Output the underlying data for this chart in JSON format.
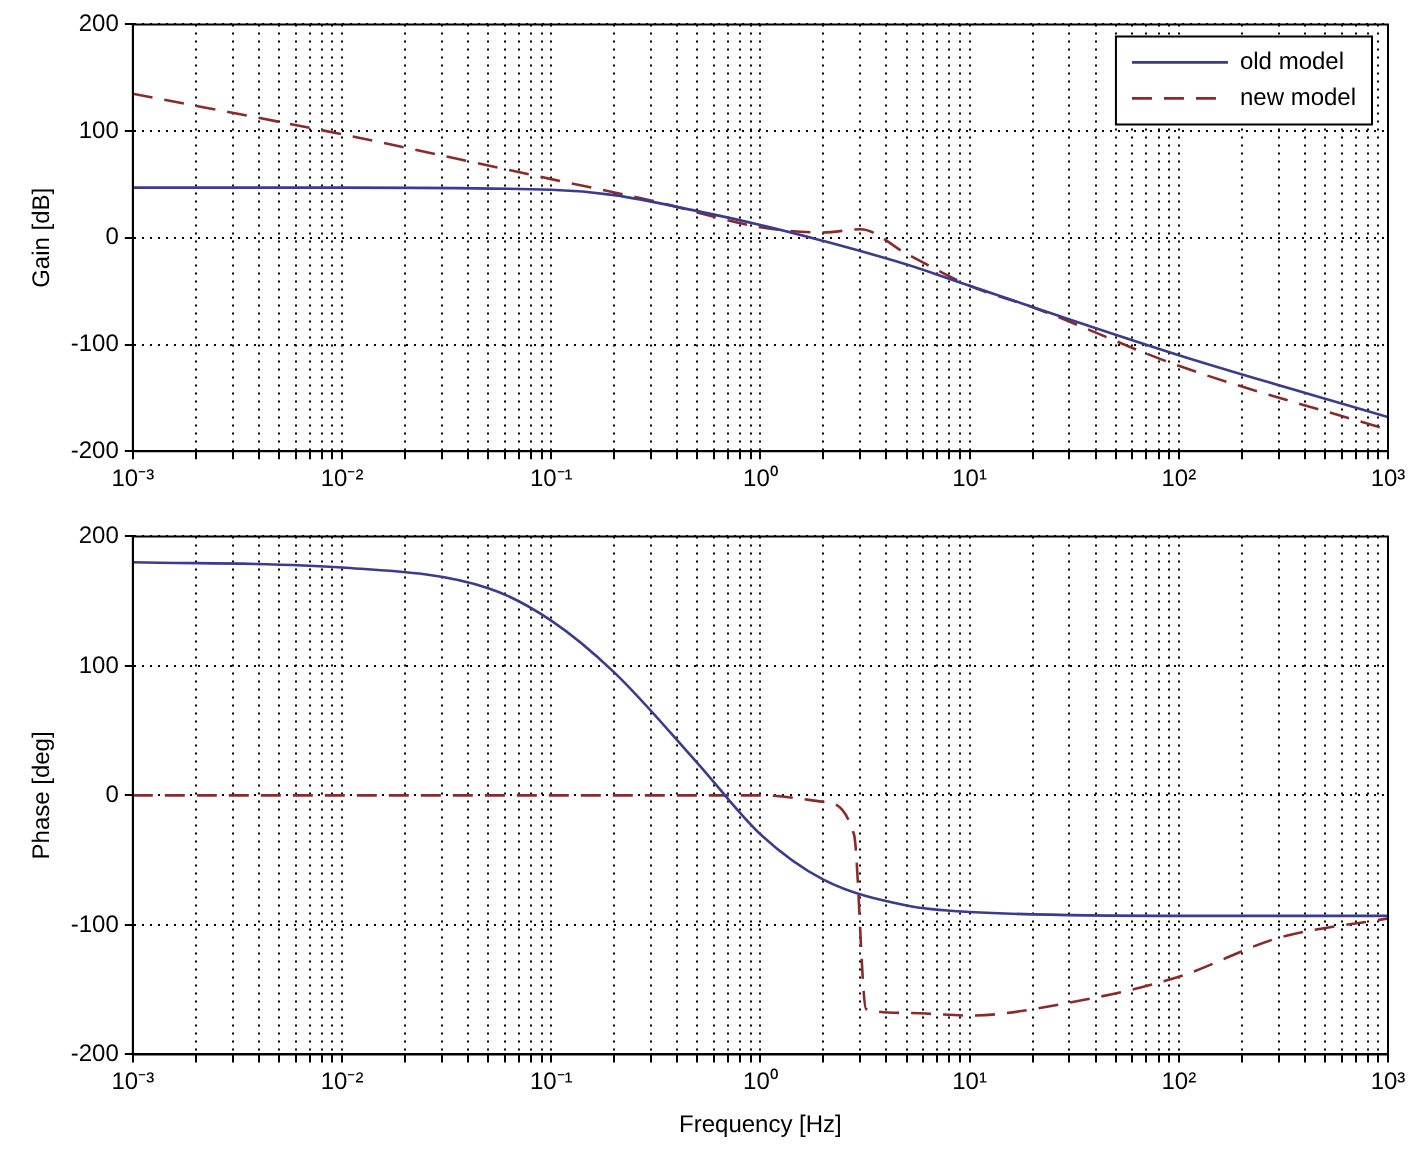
{
  "chart_data": [
    {
      "type": "line",
      "ylabel": "Gain [dB]",
      "log": "x",
      "xlim": [
        0.001,
        1000
      ],
      "ylim": [
        -200,
        200
      ],
      "yticks": [
        -200,
        -100,
        0,
        100,
        200
      ],
      "xticks": [
        {
          "value": 0.001,
          "label": "10⁻³"
        },
        {
          "value": 0.002,
          "label": null
        },
        {
          "value": 0.003,
          "label": null
        },
        {
          "value": 0.004,
          "label": null
        },
        {
          "value": 0.005,
          "label": null
        },
        {
          "value": 0.006,
          "label": null
        },
        {
          "value": 0.007,
          "label": null
        },
        {
          "value": 0.008,
          "label": null
        },
        {
          "value": 0.009,
          "label": null
        },
        {
          "value": 0.01,
          "label": "10⁻²"
        },
        {
          "value": 0.02,
          "label": null
        },
        {
          "value": 0.03,
          "label": null
        },
        {
          "value": 0.04,
          "label": null
        },
        {
          "value": 0.05,
          "label": null
        },
        {
          "value": 0.06,
          "label": null
        },
        {
          "value": 0.07,
          "label": null
        },
        {
          "value": 0.08,
          "label": null
        },
        {
          "value": 0.09,
          "label": null
        },
        {
          "value": 0.1,
          "label": "10⁻¹"
        },
        {
          "value": 0.2,
          "label": null
        },
        {
          "value": 0.3,
          "label": null
        },
        {
          "value": 0.4,
          "label": null
        },
        {
          "value": 0.5,
          "label": null
        },
        {
          "value": 0.6,
          "label": null
        },
        {
          "value": 0.7,
          "label": null
        },
        {
          "value": 0.8,
          "label": null
        },
        {
          "value": 0.9,
          "label": null
        },
        {
          "value": 1,
          "label": "10⁰"
        },
        {
          "value": 2,
          "label": null
        },
        {
          "value": 3,
          "label": null
        },
        {
          "value": 4,
          "label": null
        },
        {
          "value": 5,
          "label": null
        },
        {
          "value": 6,
          "label": null
        },
        {
          "value": 7,
          "label": null
        },
        {
          "value": 8,
          "label": null
        },
        {
          "value": 9,
          "label": null
        },
        {
          "value": 10,
          "label": "10¹"
        },
        {
          "value": 20,
          "label": null
        },
        {
          "value": 30,
          "label": null
        },
        {
          "value": 40,
          "label": null
        },
        {
          "value": 50,
          "label": null
        },
        {
          "value": 60,
          "label": null
        },
        {
          "value": 70,
          "label": null
        },
        {
          "value": 80,
          "label": null
        },
        {
          "value": 90,
          "label": null
        },
        {
          "value": 100,
          "label": "10²"
        },
        {
          "value": 200,
          "label": null
        },
        {
          "value": 300,
          "label": null
        },
        {
          "value": 400,
          "label": null
        },
        {
          "value": 500,
          "label": null
        },
        {
          "value": 600,
          "label": null
        },
        {
          "value": 700,
          "label": null
        },
        {
          "value": 800,
          "label": null
        },
        {
          "value": 900,
          "label": null
        },
        {
          "value": 1000,
          "label": "10³"
        }
      ],
      "grid": true,
      "legend": "top right",
      "marker": "none",
      "series": [
        {
          "name": "old model",
          "color": "#3b3b8f",
          "line_style": "solid",
          "x": [
            0.001,
            0.01,
            0.1,
            0.2,
            0.5,
            1,
            2,
            5,
            10,
            100,
            1000
          ],
          "values": [
            47,
            47,
            45,
            40,
            25,
            12,
            -3,
            -25,
            -45,
            -110,
            -168
          ]
        },
        {
          "name": "new model",
          "color": "#8b2a2a",
          "line_style": "dashed",
          "x": [
            0.001,
            0.01,
            0.1,
            0.3,
            1,
            2,
            3,
            5,
            10,
            20,
            100,
            1000
          ],
          "values": [
            135,
            97,
            55,
            35,
            10,
            5,
            8,
            -15,
            -45,
            -65,
            -120,
            -180
          ]
        }
      ]
    },
    {
      "type": "line",
      "xlabel": "Frequency [Hz]",
      "ylabel": "Phase [deg]",
      "log": "x",
      "xlim": [
        0.001,
        1000
      ],
      "ylim": [
        -200,
        200
      ],
      "yticks": [
        -200,
        -100,
        0,
        100,
        200
      ],
      "xticks": [
        {
          "value": 0.001,
          "label": "10⁻³"
        },
        {
          "value": 0.002,
          "label": null
        },
        {
          "value": 0.003,
          "label": null
        },
        {
          "value": 0.004,
          "label": null
        },
        {
          "value": 0.005,
          "label": null
        },
        {
          "value": 0.006,
          "label": null
        },
        {
          "value": 0.007,
          "label": null
        },
        {
          "value": 0.008,
          "label": null
        },
        {
          "value": 0.009,
          "label": null
        },
        {
          "value": 0.01,
          "label": "10⁻²"
        },
        {
          "value": 0.02,
          "label": null
        },
        {
          "value": 0.03,
          "label": null
        },
        {
          "value": 0.04,
          "label": null
        },
        {
          "value": 0.05,
          "label": null
        },
        {
          "value": 0.06,
          "label": null
        },
        {
          "value": 0.07,
          "label": null
        },
        {
          "value": 0.08,
          "label": null
        },
        {
          "value": 0.09,
          "label": null
        },
        {
          "value": 0.1,
          "label": "10⁻¹"
        },
        {
          "value": 0.2,
          "label": null
        },
        {
          "value": 0.3,
          "label": null
        },
        {
          "value": 0.4,
          "label": null
        },
        {
          "value": 0.5,
          "label": null
        },
        {
          "value": 0.6,
          "label": null
        },
        {
          "value": 0.7,
          "label": null
        },
        {
          "value": 0.8,
          "label": null
        },
        {
          "value": 0.9,
          "label": null
        },
        {
          "value": 1,
          "label": "10⁰"
        },
        {
          "value": 2,
          "label": null
        },
        {
          "value": 3,
          "label": null
        },
        {
          "value": 4,
          "label": null
        },
        {
          "value": 5,
          "label": null
        },
        {
          "value": 6,
          "label": null
        },
        {
          "value": 7,
          "label": null
        },
        {
          "value": 8,
          "label": null
        },
        {
          "value": 9,
          "label": null
        },
        {
          "value": 10,
          "label": "10¹"
        },
        {
          "value": 20,
          "label": null
        },
        {
          "value": 30,
          "label": null
        },
        {
          "value": 40,
          "label": null
        },
        {
          "value": 50,
          "label": null
        },
        {
          "value": 60,
          "label": null
        },
        {
          "value": 70,
          "label": null
        },
        {
          "value": 80,
          "label": null
        },
        {
          "value": 90,
          "label": null
        },
        {
          "value": 100,
          "label": "10²"
        },
        {
          "value": 200,
          "label": null
        },
        {
          "value": 300,
          "label": null
        },
        {
          "value": 400,
          "label": null
        },
        {
          "value": 500,
          "label": null
        },
        {
          "value": 600,
          "label": null
        },
        {
          "value": 700,
          "label": null
        },
        {
          "value": 800,
          "label": null
        },
        {
          "value": 900,
          "label": null
        },
        {
          "value": 1000,
          "label": "10³"
        }
      ],
      "grid": true,
      "marker": "none",
      "series": [
        {
          "color": "#3b3b8f",
          "line_style": "solid",
          "x": [
            0.001,
            0.01,
            0.05,
            0.1,
            0.2,
            0.5,
            1,
            2,
            5,
            10,
            100,
            1000
          ],
          "values": [
            180,
            176,
            160,
            135,
            95,
            25,
            -30,
            -65,
            -85,
            -90,
            -93,
            -93
          ]
        },
        {
          "color": "#8b2a2a",
          "line_style": "dashed",
          "x": [
            0.001,
            1,
            2,
            2.8,
            3.2,
            5,
            10,
            30,
            100,
            300,
            1000
          ],
          "values": [
            0,
            0,
            -5,
            -30,
            -165,
            -168,
            -170,
            -160,
            -140,
            -110,
            -95
          ]
        }
      ]
    }
  ]
}
